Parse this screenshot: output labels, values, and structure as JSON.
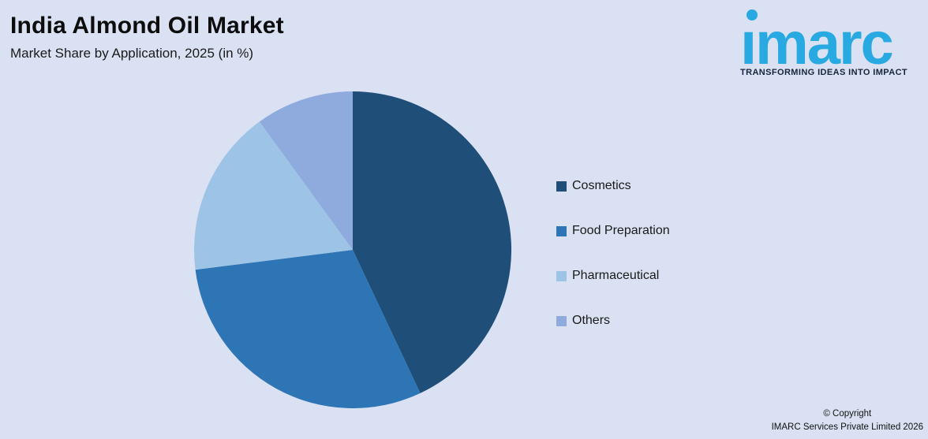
{
  "page": {
    "background": "#d9e1f2",
    "title": "India Almond Oil Market",
    "subtitle": "Market Share by Application, 2025 (in %)"
  },
  "logo": {
    "wordmark": "imarc",
    "wordmark_dotless": "ımarc",
    "tagline": "TRANSFORMING IDEAS INTO IMPACT",
    "brand_color": "#29a9e1",
    "tagline_color": "#16243d"
  },
  "chart_data": {
    "type": "pie",
    "title": "India Almond Oil Market",
    "subtitle": "Market Share by Application, 2025 (in %)",
    "unit": "%",
    "categories": [
      "Cosmetics",
      "Food Preparation",
      "Pharmaceutical",
      "Others"
    ],
    "values": [
      43,
      30,
      17,
      10
    ],
    "colors": [
      "#1f4e79",
      "#2e75b6",
      "#9dc3e6",
      "#8faadc"
    ],
    "start_angle_deg": 0,
    "direction": "clockwise",
    "legend_position": "right",
    "data_labels": false
  },
  "footer": {
    "copyright_line1": "© Copyright",
    "copyright_line2": "IMARC Services Private Limited 2026"
  }
}
